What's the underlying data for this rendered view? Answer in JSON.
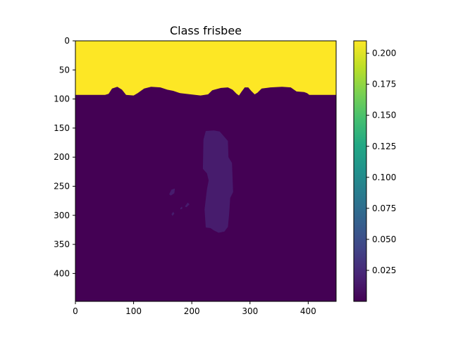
{
  "chart_data": {
    "type": "heatmap",
    "title": "Class frisbee",
    "xlabel": "",
    "ylabel": "",
    "image_size": [
      448,
      448
    ],
    "xlim": [
      0,
      448
    ],
    "ylim": [
      448,
      0
    ],
    "xticks": [
      0,
      100,
      200,
      300,
      400
    ],
    "yticks": [
      0,
      50,
      100,
      150,
      200,
      250,
      300,
      350,
      400
    ],
    "colormap": "viridis",
    "colorbar": {
      "range": [
        0.0,
        0.21
      ],
      "ticks": [
        "0.025",
        "0.050",
        "0.075",
        "0.100",
        "0.125",
        "0.150",
        "0.175",
        "0.200"
      ]
    },
    "regions": [
      {
        "label": "top band",
        "value": 0.21,
        "boundary": [
          [
            0,
            0
          ],
          [
            448,
            0
          ],
          [
            448,
            93
          ],
          [
            402,
            93
          ],
          [
            398,
            90
          ],
          [
            393,
            88
          ],
          [
            380,
            87
          ],
          [
            370,
            80
          ],
          [
            355,
            79
          ],
          [
            335,
            80
          ],
          [
            320,
            82
          ],
          [
            313,
            89
          ],
          [
            308,
            92
          ],
          [
            302,
            86
          ],
          [
            297,
            80
          ],
          [
            291,
            80
          ],
          [
            285,
            88
          ],
          [
            281,
            94
          ],
          [
            277,
            91
          ],
          [
            270,
            84
          ],
          [
            262,
            80
          ],
          [
            250,
            81
          ],
          [
            235,
            85
          ],
          [
            228,
            92
          ],
          [
            215,
            94
          ],
          [
            198,
            92
          ],
          [
            180,
            90
          ],
          [
            168,
            86
          ],
          [
            158,
            84
          ],
          [
            146,
            80
          ],
          [
            130,
            79
          ],
          [
            118,
            82
          ],
          [
            107,
            90
          ],
          [
            100,
            94
          ],
          [
            87,
            93
          ],
          [
            80,
            84
          ],
          [
            72,
            79
          ],
          [
            63,
            82
          ],
          [
            57,
            91
          ],
          [
            51,
            93
          ],
          [
            0,
            93
          ]
        ]
      },
      {
        "label": "object body",
        "value": 0.016,
        "boundary": [
          [
            224,
            155
          ],
          [
            238,
            154
          ],
          [
            248,
            156
          ],
          [
            262,
            172
          ],
          [
            263,
            200
          ],
          [
            269,
            210
          ],
          [
            271,
            260
          ],
          [
            266,
            270
          ],
          [
            264,
            300
          ],
          [
            262,
            320
          ],
          [
            256,
            328
          ],
          [
            246,
            330
          ],
          [
            238,
            326
          ],
          [
            232,
            322
          ],
          [
            224,
            321
          ],
          [
            222,
            290
          ],
          [
            224,
            272
          ],
          [
            226,
            255
          ],
          [
            229,
            240
          ],
          [
            226,
            228
          ],
          [
            219,
            220
          ],
          [
            220,
            170
          ]
        ]
      },
      {
        "label": "fragment a",
        "value": 0.016,
        "boundary": [
          [
            161,
            264
          ],
          [
            165,
            256
          ],
          [
            171,
            254
          ],
          [
            170,
            262
          ],
          [
            164,
            266
          ]
        ]
      },
      {
        "label": "fragment b",
        "value": 0.016,
        "boundary": [
          [
            188,
            285
          ],
          [
            193,
            278
          ],
          [
            196,
            281
          ],
          [
            191,
            286
          ]
        ]
      },
      {
        "label": "fragment c",
        "value": 0.016,
        "boundary": [
          [
            165,
            298
          ],
          [
            168,
            294
          ],
          [
            170,
            297
          ],
          [
            167,
            301
          ]
        ]
      },
      {
        "label": "fragment d",
        "value": 0.016,
        "boundary": [
          [
            180,
            288
          ],
          [
            183,
            285
          ],
          [
            184,
            288
          ],
          [
            181,
            290
          ]
        ]
      }
    ],
    "background_value": 0.0
  }
}
